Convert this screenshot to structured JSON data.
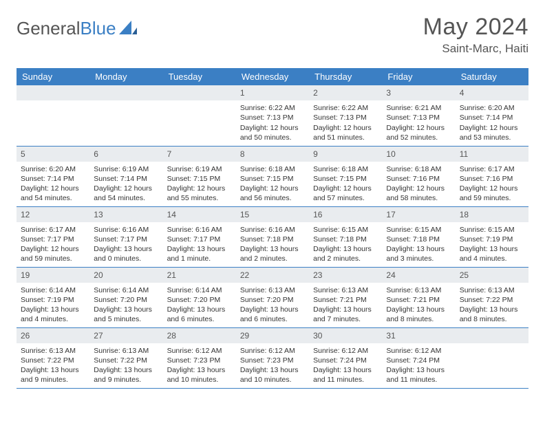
{
  "brand": {
    "name_part1": "General",
    "name_part2": "Blue"
  },
  "title": "May 2024",
  "location": "Saint-Marc, Haiti",
  "colors": {
    "header_bg": "#3b7fc4",
    "header_fg": "#ffffff",
    "daynum_bg": "#e9ecef",
    "text": "#333333",
    "brand_gray": "#555555",
    "row_border": "#3b7fc4"
  },
  "typography": {
    "month_title_pt": 26,
    "location_pt": 13,
    "dayheader_pt": 10,
    "cell_pt": 8,
    "font_family": "Arial"
  },
  "day_headers": [
    "Sunday",
    "Monday",
    "Tuesday",
    "Wednesday",
    "Thursday",
    "Friday",
    "Saturday"
  ],
  "weeks": [
    [
      null,
      null,
      null,
      {
        "d": "1",
        "sr": "Sunrise: 6:22 AM",
        "ss": "Sunset: 7:13 PM",
        "dl": "Daylight: 12 hours and 50 minutes."
      },
      {
        "d": "2",
        "sr": "Sunrise: 6:22 AM",
        "ss": "Sunset: 7:13 PM",
        "dl": "Daylight: 12 hours and 51 minutes."
      },
      {
        "d": "3",
        "sr": "Sunrise: 6:21 AM",
        "ss": "Sunset: 7:13 PM",
        "dl": "Daylight: 12 hours and 52 minutes."
      },
      {
        "d": "4",
        "sr": "Sunrise: 6:20 AM",
        "ss": "Sunset: 7:14 PM",
        "dl": "Daylight: 12 hours and 53 minutes."
      }
    ],
    [
      {
        "d": "5",
        "sr": "Sunrise: 6:20 AM",
        "ss": "Sunset: 7:14 PM",
        "dl": "Daylight: 12 hours and 54 minutes."
      },
      {
        "d": "6",
        "sr": "Sunrise: 6:19 AM",
        "ss": "Sunset: 7:14 PM",
        "dl": "Daylight: 12 hours and 54 minutes."
      },
      {
        "d": "7",
        "sr": "Sunrise: 6:19 AM",
        "ss": "Sunset: 7:15 PM",
        "dl": "Daylight: 12 hours and 55 minutes."
      },
      {
        "d": "8",
        "sr": "Sunrise: 6:18 AM",
        "ss": "Sunset: 7:15 PM",
        "dl": "Daylight: 12 hours and 56 minutes."
      },
      {
        "d": "9",
        "sr": "Sunrise: 6:18 AM",
        "ss": "Sunset: 7:15 PM",
        "dl": "Daylight: 12 hours and 57 minutes."
      },
      {
        "d": "10",
        "sr": "Sunrise: 6:18 AM",
        "ss": "Sunset: 7:16 PM",
        "dl": "Daylight: 12 hours and 58 minutes."
      },
      {
        "d": "11",
        "sr": "Sunrise: 6:17 AM",
        "ss": "Sunset: 7:16 PM",
        "dl": "Daylight: 12 hours and 59 minutes."
      }
    ],
    [
      {
        "d": "12",
        "sr": "Sunrise: 6:17 AM",
        "ss": "Sunset: 7:17 PM",
        "dl": "Daylight: 12 hours and 59 minutes."
      },
      {
        "d": "13",
        "sr": "Sunrise: 6:16 AM",
        "ss": "Sunset: 7:17 PM",
        "dl": "Daylight: 13 hours and 0 minutes."
      },
      {
        "d": "14",
        "sr": "Sunrise: 6:16 AM",
        "ss": "Sunset: 7:17 PM",
        "dl": "Daylight: 13 hours and 1 minute."
      },
      {
        "d": "15",
        "sr": "Sunrise: 6:16 AM",
        "ss": "Sunset: 7:18 PM",
        "dl": "Daylight: 13 hours and 2 minutes."
      },
      {
        "d": "16",
        "sr": "Sunrise: 6:15 AM",
        "ss": "Sunset: 7:18 PM",
        "dl": "Daylight: 13 hours and 2 minutes."
      },
      {
        "d": "17",
        "sr": "Sunrise: 6:15 AM",
        "ss": "Sunset: 7:18 PM",
        "dl": "Daylight: 13 hours and 3 minutes."
      },
      {
        "d": "18",
        "sr": "Sunrise: 6:15 AM",
        "ss": "Sunset: 7:19 PM",
        "dl": "Daylight: 13 hours and 4 minutes."
      }
    ],
    [
      {
        "d": "19",
        "sr": "Sunrise: 6:14 AM",
        "ss": "Sunset: 7:19 PM",
        "dl": "Daylight: 13 hours and 4 minutes."
      },
      {
        "d": "20",
        "sr": "Sunrise: 6:14 AM",
        "ss": "Sunset: 7:20 PM",
        "dl": "Daylight: 13 hours and 5 minutes."
      },
      {
        "d": "21",
        "sr": "Sunrise: 6:14 AM",
        "ss": "Sunset: 7:20 PM",
        "dl": "Daylight: 13 hours and 6 minutes."
      },
      {
        "d": "22",
        "sr": "Sunrise: 6:13 AM",
        "ss": "Sunset: 7:20 PM",
        "dl": "Daylight: 13 hours and 6 minutes."
      },
      {
        "d": "23",
        "sr": "Sunrise: 6:13 AM",
        "ss": "Sunset: 7:21 PM",
        "dl": "Daylight: 13 hours and 7 minutes."
      },
      {
        "d": "24",
        "sr": "Sunrise: 6:13 AM",
        "ss": "Sunset: 7:21 PM",
        "dl": "Daylight: 13 hours and 8 minutes."
      },
      {
        "d": "25",
        "sr": "Sunrise: 6:13 AM",
        "ss": "Sunset: 7:22 PM",
        "dl": "Daylight: 13 hours and 8 minutes."
      }
    ],
    [
      {
        "d": "26",
        "sr": "Sunrise: 6:13 AM",
        "ss": "Sunset: 7:22 PM",
        "dl": "Daylight: 13 hours and 9 minutes."
      },
      {
        "d": "27",
        "sr": "Sunrise: 6:13 AM",
        "ss": "Sunset: 7:22 PM",
        "dl": "Daylight: 13 hours and 9 minutes."
      },
      {
        "d": "28",
        "sr": "Sunrise: 6:12 AM",
        "ss": "Sunset: 7:23 PM",
        "dl": "Daylight: 13 hours and 10 minutes."
      },
      {
        "d": "29",
        "sr": "Sunrise: 6:12 AM",
        "ss": "Sunset: 7:23 PM",
        "dl": "Daylight: 13 hours and 10 minutes."
      },
      {
        "d": "30",
        "sr": "Sunrise: 6:12 AM",
        "ss": "Sunset: 7:24 PM",
        "dl": "Daylight: 13 hours and 11 minutes."
      },
      {
        "d": "31",
        "sr": "Sunrise: 6:12 AM",
        "ss": "Sunset: 7:24 PM",
        "dl": "Daylight: 13 hours and 11 minutes."
      },
      null
    ]
  ]
}
